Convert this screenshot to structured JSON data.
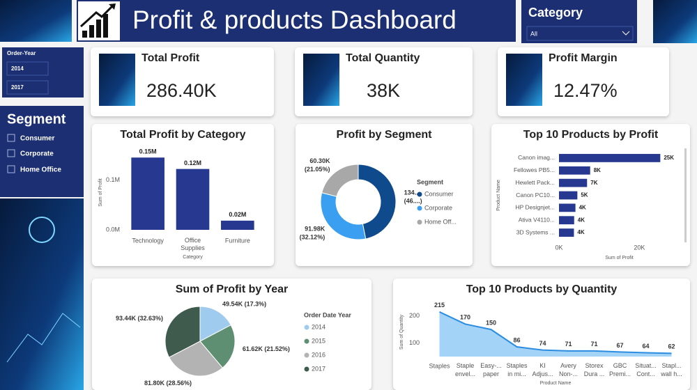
{
  "header": {
    "title": "Profit & products Dashboard"
  },
  "category_slicer": {
    "title": "Category",
    "value": "All"
  },
  "order_year_slicer": {
    "title": "Order-Year",
    "options": [
      "2014",
      "2017"
    ]
  },
  "segment_slicer": {
    "title": "Segment",
    "options": [
      "Consumer",
      "Corporate",
      "Home Office"
    ]
  },
  "kpis": [
    {
      "title": "Total Profit",
      "value": "286.40K"
    },
    {
      "title": "Total Quantity",
      "value": "38K"
    },
    {
      "title": "Profit Margin",
      "value": "12.47%"
    }
  ],
  "chart_data": [
    {
      "type": "bar",
      "title": "Total Profit by Category",
      "categories": [
        "Technology",
        "Office Supplies",
        "Furniture"
      ],
      "values": [
        145450,
        122490,
        18450
      ],
      "value_labels": [
        "0.15M",
        "0.12M",
        "0.02M"
      ],
      "color": "#26388f",
      "x_label": "Category",
      "y_label": "Sum of Profit",
      "ylim": [
        0,
        150000
      ],
      "yticks": [
        {
          "value": 0,
          "label": "0.0M"
        },
        {
          "value": 100000,
          "label": "0.1M"
        }
      ]
    },
    {
      "type": "donut",
      "title": "Profit by Segment",
      "legend_title": "Segment",
      "categories": [
        "Consumer",
        "Corporate",
        "Home Off..."
      ],
      "values": [
        134120,
        91980,
        60300
      ],
      "value_labels": [
        "134.... (46....)",
        "91.98K (32.12%)",
        "60.30K (21.05%)"
      ],
      "colors": [
        "#0f4a8c",
        "#3a9ff0",
        "#a8a8a8"
      ]
    },
    {
      "type": "hbar",
      "title": "Top 10 Products by Profit",
      "categories": [
        "Canon imag...",
        "Fellowes PB5...",
        "Hewlett Pack...",
        "Canon PC10...",
        "HP Designjet...",
        "Ativa V4110...",
        "3D Systems ..."
      ],
      "values": [
        25200,
        7753,
        6983,
        4570,
        4094,
        3772,
        3717
      ],
      "value_labels": [
        "25K",
        "8K",
        "7K",
        "5K",
        "4K",
        "4K",
        "4K"
      ],
      "color": "#26388f",
      "x_label": "Sum of Profit",
      "y_label": "Product Name",
      "xlim": [
        0,
        30000
      ],
      "xticks": [
        {
          "value": 0,
          "label": "0K"
        },
        {
          "value": 20000,
          "label": "20K"
        }
      ]
    },
    {
      "type": "pie",
      "title": "Sum of Profit by Year",
      "legend_title": "Order Date Year",
      "categories": [
        "2014",
        "2015",
        "2016",
        "2017"
      ],
      "values": [
        49540,
        61620,
        81800,
        93440
      ],
      "value_labels": [
        "49.54K (17.3%)",
        "61.62K (21.52%)",
        "81.80K (28.56%)",
        "93.44K (32.63%)"
      ],
      "colors": [
        "#9ecbee",
        "#5e8f72",
        "#b3b3b3",
        "#3f5b4e"
      ]
    },
    {
      "type": "area",
      "title": "Top 10 Products by Quantity",
      "categories": [
        "Staples",
        "Staple envel...",
        "Easy-... paper",
        "Staples in mi...",
        "KI Adjus...",
        "Avery Non-...",
        "Storex Dura ...",
        "GBC Premi...",
        "Situat... Cont...",
        "Stapl... wall h..."
      ],
      "values": [
        215,
        170,
        150,
        86,
        74,
        71,
        71,
        67,
        64,
        62
      ],
      "color": "#a3d3f7",
      "line_color": "#2b8ce0",
      "x_label": "Product Name",
      "y_label": "Sum of Quantity",
      "ylim": [
        50,
        230
      ],
      "yticks": [
        100,
        200
      ]
    }
  ]
}
